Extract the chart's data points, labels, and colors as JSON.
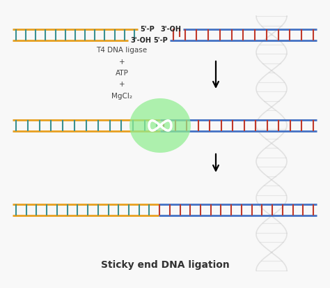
{
  "bg_color": "#f8f8f8",
  "title": "Sticky end DNA ligation",
  "title_fontsize": 10,
  "orange": "#E8A020",
  "teal": "#3A9090",
  "blue": "#4472C4",
  "red": "#C0392B",
  "green": "#90EE90",
  "dark": "#222222",
  "gray_helix": "#CCCCCC",
  "reaction_text": "T4 DNA ligase\n+\nATP\n+\nMgCl₂",
  "strand_half": 8,
  "strand_lw": 2.0,
  "rung_lw": 1.5
}
